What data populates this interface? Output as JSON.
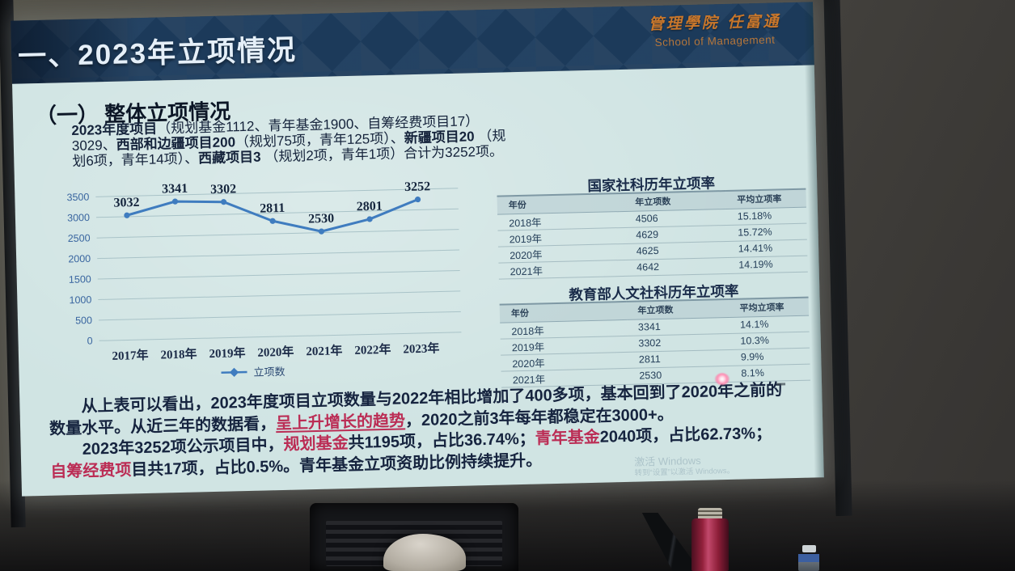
{
  "slide": {
    "title": "一、2023年立项情况",
    "logo": {
      "calligraphy": "管理學院 任富通",
      "subtitle": "School of Management"
    },
    "section_heading": "（一） 整体立项情况",
    "intro_segments": [
      {
        "t": "2023年度项目",
        "b": 1
      },
      {
        "t": "（规划基金1112、青年基金1900、自筹经费项目17）3029、"
      },
      {
        "t": "西部和边疆项目200",
        "b": 1
      },
      {
        "t": "（规划75项，青年125项）、"
      },
      {
        "t": "新疆项目20",
        "b": 1
      },
      {
        "t": " （规划6项，青年14项）、"
      },
      {
        "t": "西藏项目3",
        "b": 1
      },
      {
        "t": " （规划2项，青年1项）合计为3252项。"
      }
    ],
    "analysis_p1": [
      {
        "t": "从上表可以看出，2023年度项目立项数量与2022年相比增加了400多项，基本回到了2020年之前的数量水平。从近三年的数据看，"
      },
      {
        "t": "呈上升增长的趋势",
        "red": 1,
        "u": 1
      },
      {
        "t": "，2020之前3年每年都稳定在3000+。"
      }
    ],
    "analysis_p2": [
      {
        "t": "2023年3252项公示项目中，"
      },
      {
        "t": "规划基金",
        "red": 1
      },
      {
        "t": "共1195项，占比"
      },
      {
        "t": "36.74%",
        "b": 1
      },
      {
        "t": "；"
      },
      {
        "t": "青年基金",
        "red": 1
      },
      {
        "t": "2040项，占比"
      },
      {
        "t": "62.73%",
        "b": 1
      },
      {
        "t": "；"
      },
      {
        "t": "自筹经费项",
        "red": 1
      },
      {
        "t": "目共17项，占比"
      },
      {
        "t": "0.5%",
        "b": 1
      },
      {
        "t": "。青年基金立项资助比例持续提升。"
      }
    ]
  },
  "tables": [
    {
      "title": "国家社科历年立项率",
      "headers": [
        "年份",
        "年立项数",
        "平均立项率"
      ],
      "rows": [
        [
          "2018年",
          "4506",
          "15.18%"
        ],
        [
          "2019年",
          "4629",
          "15.72%"
        ],
        [
          "2020年",
          "4625",
          "14.41%"
        ],
        [
          "2021年",
          "4642",
          "14.19%"
        ]
      ]
    },
    {
      "title": "教育部人文社科历年立项率",
      "headers": [
        "年份",
        "年立项数",
        "平均立项率"
      ],
      "rows": [
        [
          "2018年",
          "3341",
          "14.1%"
        ],
        [
          "2019年",
          "3302",
          "10.3%"
        ],
        [
          "2020年",
          "2811",
          "9.9%"
        ],
        [
          "2021年",
          "2530",
          "8.1%"
        ]
      ]
    }
  ],
  "chart_data": {
    "type": "line",
    "title": "",
    "xlabel": "",
    "ylabel": "",
    "x": [
      "2017年",
      "2018年",
      "2019年",
      "2020年",
      "2021年",
      "2022年",
      "2023年"
    ],
    "series": [
      {
        "name": "立项数",
        "values": [
          3032,
          3341,
          3302,
          2811,
          2530,
          2801,
          3252
        ],
        "color": "#3f7cbf"
      }
    ],
    "ylim": [
      0,
      3500
    ],
    "ytick_step": 500,
    "grid": true,
    "legend_position": "bottom",
    "data_labels": true
  },
  "watermark": {
    "line1": "激活 Windows",
    "line2": "转到“设置”以激活 Windows。"
  },
  "colors": {
    "banner_navy": "#1c3a5a",
    "slide_background": "#d0e4e3",
    "line_blue": "#3f7cbf",
    "red_text": "#bb2d55",
    "logo_orange": "#c9772b",
    "title_white": "#e5eff8"
  }
}
